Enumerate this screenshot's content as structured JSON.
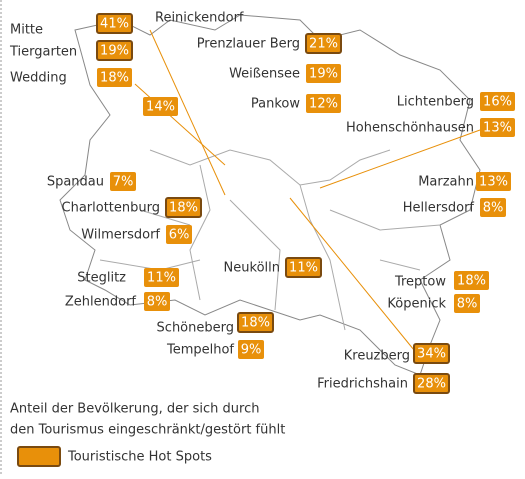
{
  "districts": [
    {
      "name": "Mitte",
      "label": "41%",
      "hotspot": true
    },
    {
      "name": "Tiergarten",
      "label": "19%",
      "hotspot": true
    },
    {
      "name": "Wedding",
      "label": "18%",
      "hotspot": false
    },
    {
      "name": "Reinickendorf",
      "label": "14%",
      "hotspot": false
    },
    {
      "name": "Prenzlauer Berg",
      "label": "21%",
      "hotspot": true
    },
    {
      "name": "Weißensee",
      "label": "19%",
      "hotspot": false
    },
    {
      "name": "Pankow",
      "label": "12%",
      "hotspot": false
    },
    {
      "name": "Lichtenberg",
      "label": "16%",
      "hotspot": false
    },
    {
      "name": "Hohenschönhausen",
      "label": "13%",
      "hotspot": false
    },
    {
      "name": "Spandau",
      "label": "7%",
      "hotspot": false
    },
    {
      "name": "Charlottenburg",
      "label": "18%",
      "hotspot": true
    },
    {
      "name": "Wilmersdorf",
      "label": "6%",
      "hotspot": false
    },
    {
      "name": "Marzahn",
      "label": "13%",
      "hotspot": false
    },
    {
      "name": "Hellersdorf",
      "label": "8%",
      "hotspot": false
    },
    {
      "name": "Neukölln",
      "label": "11%",
      "hotspot": true
    },
    {
      "name": "Steglitz",
      "label": "11%",
      "hotspot": false
    },
    {
      "name": "Zehlendorf",
      "label": "8%",
      "hotspot": false
    },
    {
      "name": "Treptow",
      "label": "18%",
      "hotspot": false
    },
    {
      "name": "Köpenick",
      "label": "8%",
      "hotspot": false
    },
    {
      "name": "Schöneberg",
      "label": "18%",
      "hotspot": true
    },
    {
      "name": "Tempelhof",
      "label": "9%",
      "hotspot": false
    },
    {
      "name": "Kreuzberg",
      "label": "34%",
      "hotspot": true
    },
    {
      "name": "Friedrichshain",
      "label": "28%",
      "hotspot": true
    }
  ],
  "note": [
    "Anteil der Bevölkerung, der sich durch",
    "den Tourismus eingeschränkt/gestört fühlt"
  ],
  "legend": {
    "label": "Touristische Hot Spots"
  }
}
